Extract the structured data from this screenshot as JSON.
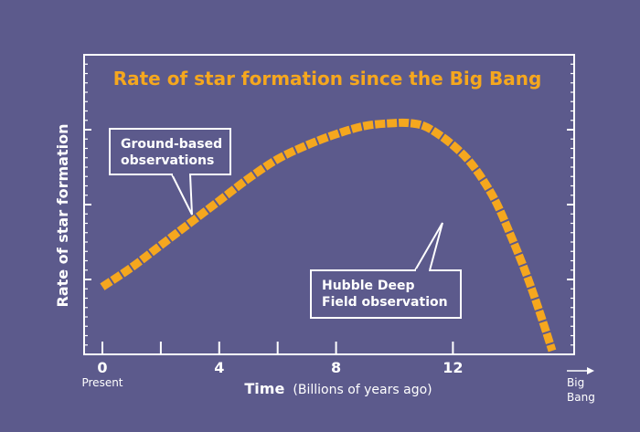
{
  "chart_data": {
    "type": "line",
    "title": "Rate of star formation since the Big Bang",
    "ylabel": "Rate of star formation",
    "xlabel": "Time",
    "xlabel_sub": "(Billions of years ago)",
    "x_ticks": [
      0,
      4,
      8,
      12
    ],
    "x_minor_ticks": [
      2,
      6
    ],
    "x_tick_sub_label": "Present",
    "x_end_label_1": "Big",
    "x_end_label_2": "Bang",
    "xlim": [
      0,
      15.5
    ],
    "ylim": [
      0,
      10
    ],
    "grid": false,
    "series": [
      {
        "x": [
          0,
          1,
          2,
          3,
          4,
          5,
          6,
          7,
          8,
          9,
          10,
          10.5,
          11,
          11.5,
          12,
          12.5,
          13,
          13.5,
          14,
          14.5,
          15,
          15.4
        ],
        "y": [
          2.3,
          3.0,
          3.8,
          4.6,
          5.4,
          6.2,
          6.9,
          7.4,
          7.8,
          8.1,
          8.2,
          8.2,
          8.1,
          7.8,
          7.4,
          6.9,
          6.2,
          5.3,
          4.1,
          2.8,
          1.3,
          0
        ]
      }
    ],
    "colors": {
      "background": "#5c5a8c",
      "line": "#f5a71e",
      "axis": "#ffffff",
      "title": "#f5a71e"
    },
    "annotations": [
      {
        "lines": [
          "Ground-based",
          "observations"
        ],
        "x": 4,
        "y": 5.4
      },
      {
        "lines": [
          "Hubble Deep",
          "Field observation"
        ],
        "x": 12.3,
        "y": 6.8
      }
    ]
  }
}
